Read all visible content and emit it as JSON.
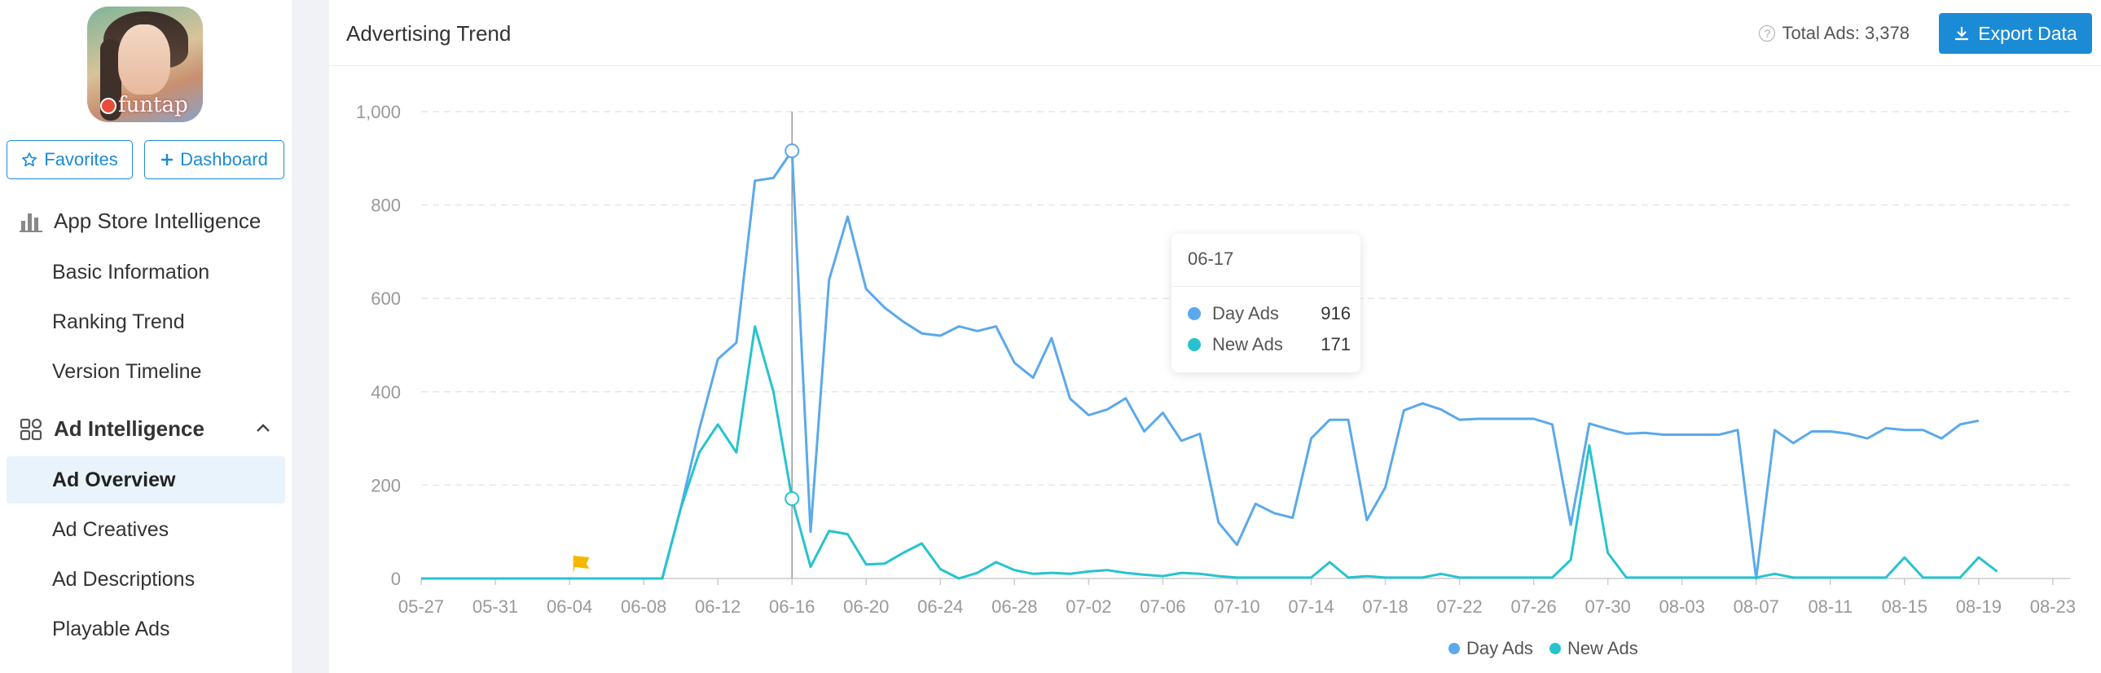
{
  "sidebar": {
    "app_icon_text": "funtap",
    "favorites_label": "Favorites",
    "dashboard_label": "Dashboard",
    "section_app_store": "App Store Intelligence",
    "app_store_items": [
      "Basic Information",
      "Ranking Trend",
      "Version Timeline"
    ],
    "section_ad": "Ad Intelligence",
    "ad_items": [
      "Ad Overview",
      "Ad Creatives",
      "Ad Descriptions",
      "Playable Ads"
    ],
    "active_item": "Ad Overview",
    "icons": {
      "favorites": "star-icon",
      "dashboard": "plus-icon",
      "app_store": "bar-chart-icon",
      "ad": "grid-icon",
      "collapse": "chevron-up-icon"
    }
  },
  "card": {
    "title": "Advertising Trend",
    "total_ads_label": "Total Ads: 3,378",
    "export_label": "Export Data"
  },
  "tooltip": {
    "date": "06-17",
    "rows": [
      {
        "name": "Day Ads",
        "value": "916"
      },
      {
        "name": "New Ads",
        "value": "171"
      }
    ]
  },
  "colors": {
    "accent": "#1b8bd6",
    "day_ads": "#5aa9ec",
    "new_ads": "#26c3cf",
    "flag": "#f5b800"
  },
  "chart_data": {
    "type": "line",
    "title": "Advertising Trend",
    "xlabel": "",
    "ylabel": "",
    "ylim": [
      0,
      1000
    ],
    "y_ticks": [
      "0",
      "200",
      "400",
      "600",
      "800",
      "1,000"
    ],
    "x_ticks": [
      "05-27",
      "05-31",
      "06-04",
      "06-08",
      "06-12",
      "06-16",
      "06-20",
      "06-24",
      "06-28",
      "07-02",
      "07-06",
      "07-10",
      "07-14",
      "07-18",
      "07-22",
      "07-26",
      "07-30",
      "08-03",
      "08-07",
      "08-11",
      "08-15",
      "08-19",
      "08-23"
    ],
    "grid": "horizontal dashed",
    "legend": "bottom-center",
    "highlight": {
      "date": "06-17",
      "day_ads": 916,
      "new_ads": 171
    },
    "flag_marker_date": "06-09",
    "series": [
      {
        "name": "Day Ads",
        "values": [
          [
            0,
            0
          ],
          [
            1,
            0
          ],
          [
            2,
            0
          ],
          [
            3,
            0
          ],
          [
            4,
            0
          ],
          [
            5,
            0
          ],
          [
            6,
            0
          ],
          [
            7,
            0
          ],
          [
            8,
            0
          ],
          [
            9,
            0
          ],
          [
            10,
            0
          ],
          [
            11,
            0
          ],
          [
            12,
            0
          ],
          [
            13,
            0
          ],
          [
            14,
            150
          ],
          [
            15,
            320
          ],
          [
            16,
            470
          ],
          [
            17,
            505
          ],
          [
            18,
            852
          ],
          [
            19,
            858
          ],
          [
            20,
            916
          ],
          [
            21,
            100
          ],
          [
            22,
            640
          ],
          [
            23,
            775
          ],
          [
            24,
            620
          ],
          [
            25,
            580
          ],
          [
            26,
            550
          ],
          [
            27,
            525
          ],
          [
            28,
            520
          ],
          [
            29,
            540
          ],
          [
            30,
            530
          ],
          [
            31,
            540
          ],
          [
            32,
            462
          ],
          [
            33,
            430
          ],
          [
            34,
            515
          ],
          [
            35,
            385
          ],
          [
            36,
            350
          ],
          [
            37,
            362
          ],
          [
            38,
            386
          ],
          [
            39,
            315
          ],
          [
            40,
            355
          ],
          [
            41,
            295
          ],
          [
            42,
            310
          ],
          [
            43,
            120
          ],
          [
            44,
            72
          ],
          [
            45,
            160
          ],
          [
            46,
            140
          ],
          [
            47,
            130
          ],
          [
            48,
            300
          ],
          [
            49,
            340
          ],
          [
            50,
            340
          ],
          [
            51,
            125
          ],
          [
            52,
            195
          ],
          [
            53,
            360
          ],
          [
            54,
            375
          ],
          [
            55,
            362
          ],
          [
            56,
            340
          ],
          [
            57,
            342
          ],
          [
            58,
            342
          ],
          [
            59,
            342
          ],
          [
            60,
            342
          ],
          [
            61,
            330
          ],
          [
            62,
            115
          ],
          [
            63,
            332
          ],
          [
            64,
            320
          ],
          [
            65,
            310
          ],
          [
            66,
            312
          ],
          [
            67,
            308
          ],
          [
            68,
            308
          ],
          [
            69,
            308
          ],
          [
            70,
            308
          ],
          [
            71,
            318
          ],
          [
            72,
            0
          ],
          [
            73,
            318
          ],
          [
            74,
            290
          ],
          [
            75,
            315
          ],
          [
            76,
            315
          ],
          [
            77,
            310
          ],
          [
            78,
            300
          ],
          [
            79,
            322
          ],
          [
            80,
            318
          ],
          [
            81,
            318
          ],
          [
            82,
            300
          ],
          [
            83,
            330
          ],
          [
            84,
            338
          ]
        ]
      },
      {
        "name": "New Ads",
        "values": [
          [
            0,
            0
          ],
          [
            1,
            0
          ],
          [
            2,
            0
          ],
          [
            3,
            0
          ],
          [
            4,
            0
          ],
          [
            5,
            0
          ],
          [
            6,
            0
          ],
          [
            7,
            0
          ],
          [
            8,
            0
          ],
          [
            9,
            0
          ],
          [
            10,
            0
          ],
          [
            11,
            0
          ],
          [
            12,
            0
          ],
          [
            13,
            0
          ],
          [
            14,
            150
          ],
          [
            15,
            270
          ],
          [
            16,
            330
          ],
          [
            17,
            270
          ],
          [
            18,
            540
          ],
          [
            19,
            400
          ],
          [
            20,
            171
          ],
          [
            21,
            25
          ],
          [
            22,
            102
          ],
          [
            23,
            95
          ],
          [
            24,
            30
          ],
          [
            25,
            32
          ],
          [
            26,
            55
          ],
          [
            27,
            75
          ],
          [
            28,
            20
          ],
          [
            29,
            0
          ],
          [
            30,
            12
          ],
          [
            31,
            35
          ],
          [
            32,
            18
          ],
          [
            33,
            10
          ],
          [
            34,
            12
          ],
          [
            35,
            10
          ],
          [
            36,
            15
          ],
          [
            37,
            18
          ],
          [
            38,
            12
          ],
          [
            39,
            8
          ],
          [
            40,
            5
          ],
          [
            41,
            12
          ],
          [
            42,
            10
          ],
          [
            43,
            5
          ],
          [
            44,
            2
          ],
          [
            45,
            2
          ],
          [
            46,
            2
          ],
          [
            47,
            2
          ],
          [
            48,
            2
          ],
          [
            49,
            35
          ],
          [
            50,
            2
          ],
          [
            51,
            5
          ],
          [
            52,
            2
          ],
          [
            53,
            2
          ],
          [
            54,
            2
          ],
          [
            55,
            10
          ],
          [
            56,
            2
          ],
          [
            57,
            2
          ],
          [
            58,
            2
          ],
          [
            59,
            2
          ],
          [
            60,
            2
          ],
          [
            61,
            2
          ],
          [
            62,
            40
          ],
          [
            63,
            285
          ],
          [
            64,
            55
          ],
          [
            65,
            2
          ],
          [
            66,
            2
          ],
          [
            67,
            2
          ],
          [
            68,
            2
          ],
          [
            69,
            2
          ],
          [
            70,
            2
          ],
          [
            71,
            2
          ],
          [
            72,
            2
          ],
          [
            73,
            10
          ],
          [
            74,
            2
          ],
          [
            75,
            2
          ],
          [
            76,
            2
          ],
          [
            77,
            2
          ],
          [
            78,
            2
          ],
          [
            79,
            2
          ],
          [
            80,
            45
          ],
          [
            81,
            2
          ],
          [
            82,
            2
          ],
          [
            83,
            2
          ],
          [
            84,
            45
          ],
          [
            85,
            15
          ]
        ]
      }
    ]
  }
}
